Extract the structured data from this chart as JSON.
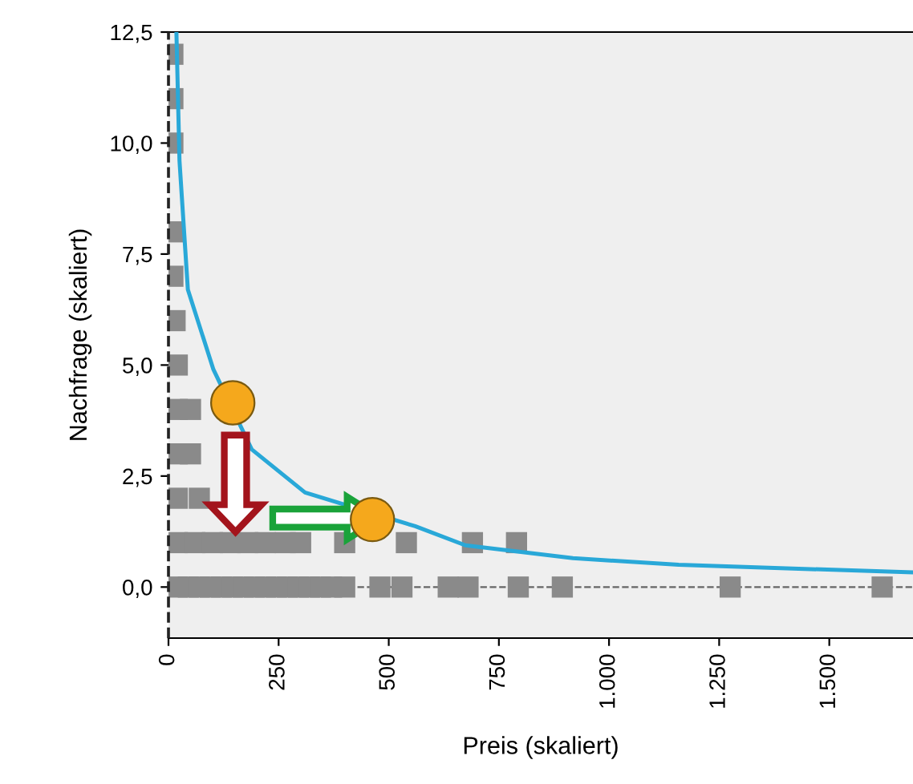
{
  "chart_data": {
    "type": "scatter",
    "xlabel": "Preis (skaliert)",
    "ylabel": "Nachfrage (skaliert)",
    "xlim": [
      0,
      1690
    ],
    "ylim": [
      -1.15,
      12.5
    ],
    "xticks": [
      0,
      250,
      500,
      750,
      {
        "value": 1000,
        "label": "1.000"
      },
      {
        "value": 1250,
        "label": "1.250"
      },
      {
        "value": 1500,
        "label": "1.500"
      }
    ],
    "yticks": [
      {
        "value": 0,
        "label": "0,0"
      },
      {
        "value": 2.5,
        "label": "2,5"
      },
      {
        "value": 5,
        "label": "5,0"
      },
      {
        "value": 7.5,
        "label": "7,5"
      },
      {
        "value": 10,
        "label": "10,0"
      },
      {
        "value": 12.5,
        "label": "12,5"
      }
    ],
    "grid": false,
    "legend": false,
    "ref_lines": [
      {
        "axis": "y",
        "value": 0,
        "color": "#666666",
        "line_style": "dashed"
      },
      {
        "axis": "x",
        "value": 0,
        "color": "#222222",
        "line_style": "dashed"
      }
    ],
    "series": [
      {
        "marker": "square",
        "color": "#8a8a8a",
        "x": [
          20,
          45,
          70,
          95,
          120,
          145,
          170,
          195,
          220,
          245,
          270,
          295,
          320,
          345,
          370,
          400,
          480,
          530,
          635,
          680,
          794,
          894,
          1275,
          1620,
          20,
          60,
          100,
          140,
          180,
          220,
          265,
          300,
          400,
          540,
          690,
          790,
          20,
          70,
          20,
          50,
          20,
          50,
          20,
          15,
          10,
          10,
          10,
          10,
          10
        ],
        "values": [
          0,
          0,
          0,
          0,
          0,
          0,
          0,
          0,
          0,
          0,
          0,
          0,
          0,
          0,
          0,
          0,
          0,
          0,
          0,
          0,
          0,
          0,
          0,
          0,
          1,
          1,
          1,
          1,
          1,
          1,
          1,
          1,
          1,
          1,
          1,
          1,
          2,
          2,
          3,
          3,
          4,
          4,
          5,
          6,
          7,
          8,
          10,
          11,
          12
        ]
      },
      {
        "type": "line",
        "color": "#29a8d8",
        "line_style": "solid",
        "marker": "none",
        "x": [
          18,
          25,
          44,
          102,
          189,
          310,
          560,
          674,
          918,
          1158,
          1690
        ],
        "values": [
          12.5,
          9.6,
          6.7,
          4.9,
          3.1,
          2.13,
          1.37,
          0.94,
          0.65,
          0.5,
          0.33
        ]
      },
      {
        "marker": "circle",
        "color": "#f5a81c",
        "x": [
          146,
          463
        ],
        "values": [
          4.15,
          1.52
        ]
      }
    ]
  }
}
